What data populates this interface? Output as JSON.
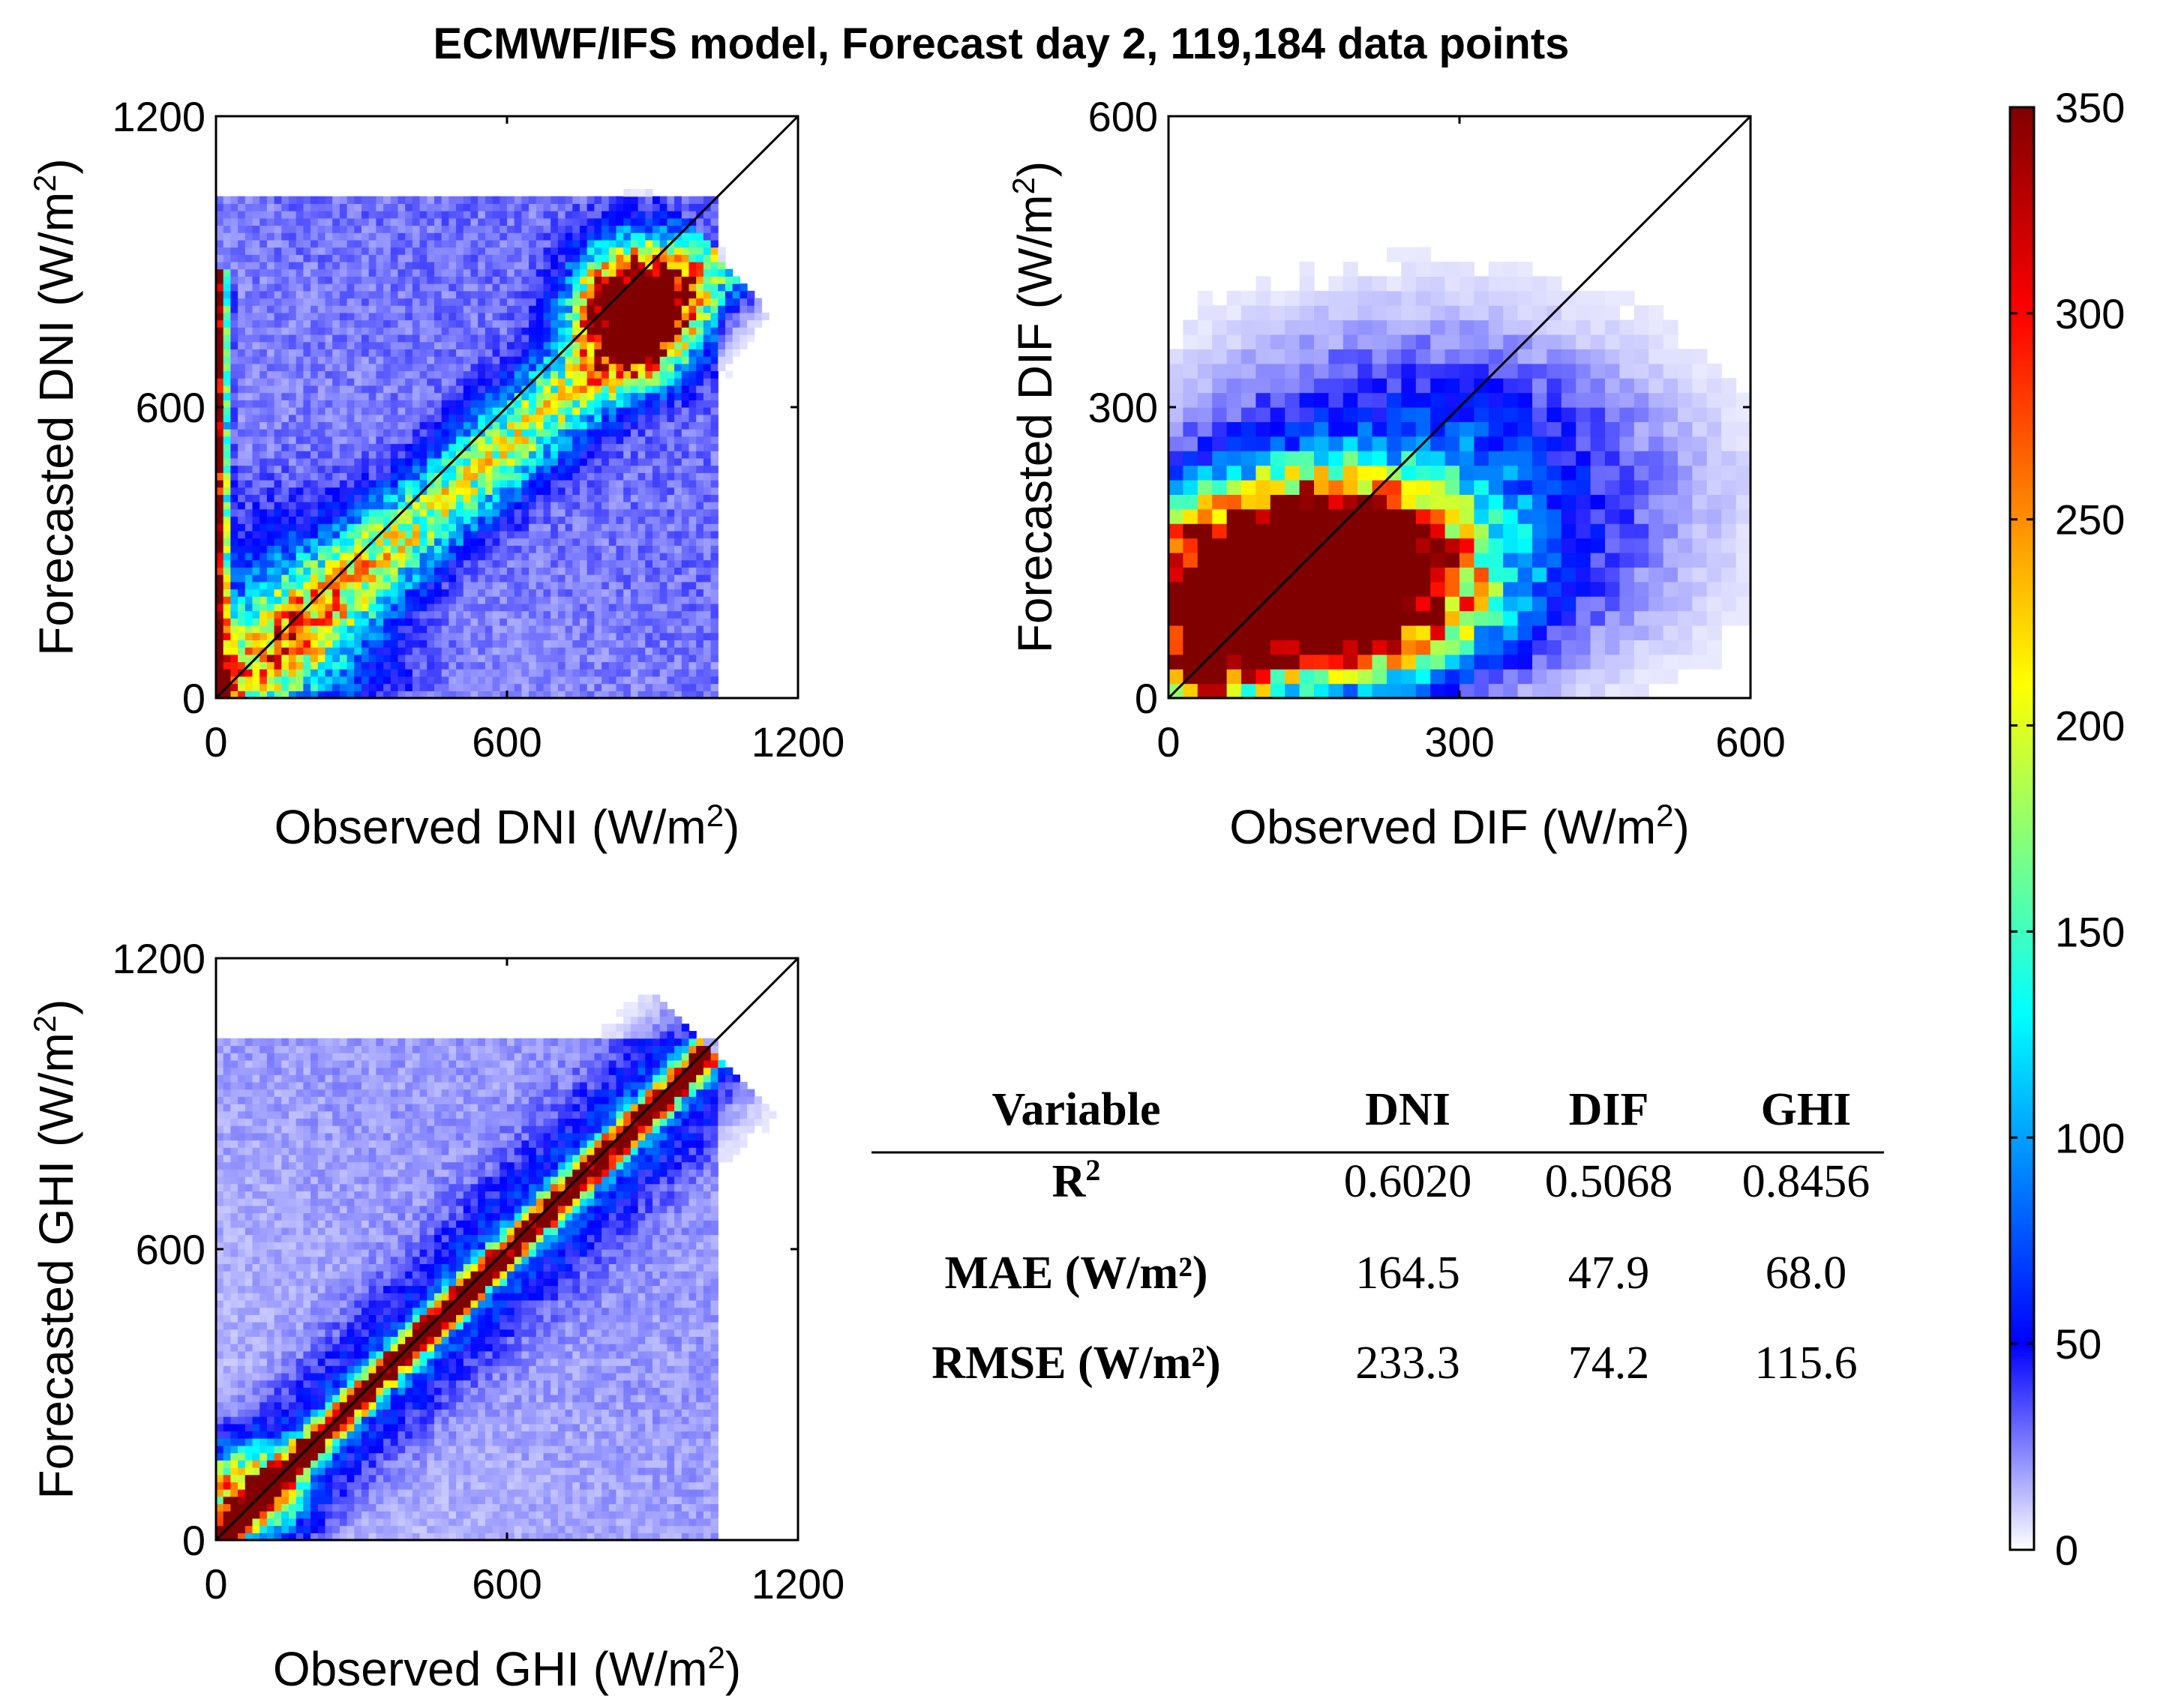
{
  "chart_data": [
    {
      "type": "heatmap",
      "id": "dni",
      "title": "ECMWF/IFS model, Forecast day 2, 119,184 data points",
      "xlabel": "Observed DNI",
      "ylabel": "Forecasted DNI",
      "unit_base": "(W/m",
      "unit_sup": "2",
      "unit_close": ")",
      "xlim": [
        0,
        1200
      ],
      "ylim": [
        0,
        1200
      ],
      "xticks": [
        0,
        600,
        1200
      ],
      "yticks": [
        0,
        600,
        1200
      ],
      "xtick_labels": [
        "0",
        "600",
        "1200"
      ],
      "ytick_labels": [
        "0",
        "600",
        "1200"
      ],
      "bins": 80,
      "identity_line": true,
      "density_features": [
        {
          "shape": "band",
          "x0": 0,
          "y0": 0,
          "x1": 1020,
          "y1": 890,
          "width": 60,
          "peak": 160
        },
        {
          "shape": "blob",
          "x": 860,
          "y": 800,
          "sx": 70,
          "sy": 80,
          "peak": 520
        },
        {
          "shape": "column",
          "x": 5,
          "y0": 0,
          "y1": 880,
          "peak": 360
        },
        {
          "shape": "blob",
          "x": 150,
          "y": 120,
          "sx": 140,
          "sy": 160,
          "peak": 90
        },
        {
          "shape": "wedge",
          "peak": 28
        }
      ]
    },
    {
      "type": "heatmap",
      "id": "dif",
      "xlabel": "Observed DIF",
      "ylabel": "Forecasted DIF",
      "unit_base": "(W/m",
      "unit_sup": "2",
      "unit_close": ")",
      "xlim": [
        0,
        600
      ],
      "ylim": [
        0,
        600
      ],
      "xticks": [
        0,
        300,
        600
      ],
      "yticks": [
        0,
        300,
        600
      ],
      "xtick_labels": [
        "0",
        "300",
        "600"
      ],
      "ytick_labels": [
        "0",
        "300",
        "600"
      ],
      "bins": 40,
      "identity_line": true,
      "density_features": [
        {
          "shape": "blob",
          "x": 140,
          "y": 120,
          "sx": 95,
          "sy": 55,
          "peak": 900
        },
        {
          "shape": "blob",
          "x": 260,
          "y": 200,
          "sx": 150,
          "sy": 100,
          "peak": 95
        },
        {
          "shape": "blob",
          "x": 30,
          "y": 30,
          "sx": 40,
          "sy": 40,
          "peak": 300
        }
      ]
    },
    {
      "type": "heatmap",
      "id": "ghi",
      "xlabel": "Observed GHI",
      "ylabel": "Forecasted GHI",
      "unit_base": "(W/m",
      "unit_sup": "2",
      "unit_close": ")",
      "xlim": [
        0,
        1200
      ],
      "ylim": [
        0,
        1200
      ],
      "xticks": [
        0,
        600,
        1200
      ],
      "yticks": [
        0,
        600,
        1200
      ],
      "xtick_labels": [
        "0",
        "600",
        "1200"
      ],
      "ytick_labels": [
        "0",
        "600",
        "1200"
      ],
      "bins": 80,
      "identity_line": true,
      "density_features": [
        {
          "shape": "band",
          "x0": 0,
          "y0": 0,
          "x1": 1000,
          "y1": 990,
          "width": 18,
          "peak": 420
        },
        {
          "shape": "band",
          "x0": 0,
          "y0": 0,
          "x1": 1000,
          "y1": 990,
          "width": 80,
          "peak": 60
        },
        {
          "shape": "blob",
          "x": 60,
          "y": 100,
          "sx": 70,
          "sy": 60,
          "peak": 220
        },
        {
          "shape": "wedge",
          "peak": 20
        }
      ]
    },
    {
      "type": "table",
      "id": "metrics",
      "columns": [
        "Variable",
        "DNI",
        "DIF",
        "GHI"
      ],
      "rows": [
        {
          "label": "R",
          "label_sup": "2",
          "label_unit": "",
          "values": [
            "0.6020",
            "0.5068",
            "0.8456"
          ]
        },
        {
          "label": "MAE ",
          "label_sup": "",
          "label_unit": "(W/m²)",
          "values": [
            "164.5",
            "47.9",
            "68.0"
          ]
        },
        {
          "label": "RMSE ",
          "label_sup": "",
          "label_unit": "(W/m²)",
          "values": [
            "233.3",
            "74.2",
            "115.6"
          ]
        }
      ]
    }
  ],
  "colorbar": {
    "min": 0,
    "max": 350,
    "ticks": [
      0,
      50,
      100,
      150,
      200,
      250,
      300,
      350
    ],
    "tick_labels": [
      "0",
      "50",
      "100",
      "150",
      "200",
      "250",
      "300",
      "350"
    ],
    "colormap": [
      "#ffffff",
      "#0000ff",
      "#00ffff",
      "#ffff00",
      "#ff0000",
      "#800000"
    ],
    "colormap_stops": [
      0,
      50,
      130,
      210,
      300,
      350
    ]
  }
}
